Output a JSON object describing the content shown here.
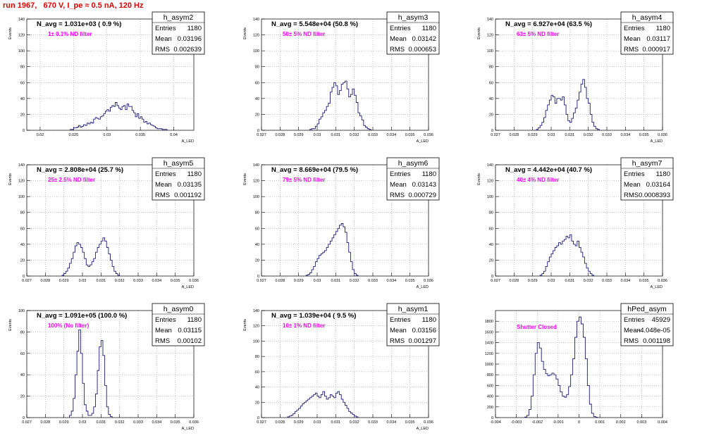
{
  "title": "run 1967,   670 V, I_pe ≈ 0.5 nA, 120 Hz",
  "chart_data": [
    {
      "type": "bar",
      "name": "h_asym2",
      "navg": "N_avg = 1.031e+03 ( 0.9 %)",
      "annotation": "1± 0.1% ND filter",
      "stats": {
        "Entries": "1180",
        "Mean": "0.03196",
        "RMS": "0.002639"
      },
      "ylabel": "Events",
      "xlabel": "A_LED",
      "xlim": [
        0.018,
        0.043
      ],
      "ylim": [
        0,
        140
      ],
      "xticks": [
        0.02,
        0.025,
        0.03,
        0.035,
        0.04
      ],
      "xticklabels": [
        "0.02",
        "0.025",
        "0.03",
        "0.035",
        "0.04"
      ],
      "yticks": [
        0,
        20,
        40,
        60,
        80,
        100,
        120,
        140
      ],
      "bins": {
        "start": 0.0245,
        "width": 0.00025,
        "counts": [
          1,
          1,
          3,
          3,
          4,
          6,
          4,
          5,
          7,
          6,
          9,
          8,
          10,
          9,
          14,
          16,
          15,
          14,
          17,
          18,
          21,
          24,
          26,
          24,
          29,
          31,
          30,
          35,
          31,
          28,
          26,
          30,
          31,
          26,
          33,
          30,
          30,
          25,
          22,
          17,
          21,
          15,
          17,
          14,
          10,
          11,
          8,
          9,
          7,
          6,
          5,
          3,
          2,
          2,
          2,
          1,
          1,
          1
        ]
      }
    },
    {
      "type": "bar",
      "name": "h_asym3",
      "navg": "N_avg = 5.548e+04 (50.8 %)",
      "annotation": "50± 5% ND filter",
      "stats": {
        "Entries": "1180",
        "Mean": "0.03142",
        "RMS": "0.000653"
      },
      "ylabel": "Events",
      "xlabel": "A_LED",
      "xlim": [
        0.027,
        0.036
      ],
      "ylim": [
        0,
        140
      ],
      "xticks": [
        0.027,
        0.028,
        0.029,
        0.03,
        0.031,
        0.032,
        0.033,
        0.034,
        0.035,
        0.036
      ],
      "xticklabels": [
        "0.027",
        "0.028",
        "0.029",
        "0.03",
        "0.031",
        "0.032",
        "0.033",
        "0.034",
        "0.035",
        "0.036"
      ],
      "yticks": [
        0,
        20,
        40,
        60,
        80,
        100,
        120,
        140
      ],
      "bins": {
        "start": 0.0296,
        "width": 0.0001,
        "counts": [
          1,
          2,
          2,
          5,
          8,
          14,
          17,
          22,
          25,
          30,
          34,
          48,
          54,
          60,
          56,
          45,
          50,
          58,
          60,
          62,
          52,
          42,
          45,
          52,
          44,
          35,
          22,
          18,
          13,
          6,
          4,
          2,
          1
        ]
      }
    },
    {
      "type": "bar",
      "name": "h_asym4",
      "navg": "N_avg = 6.927e+04 (63.5 %)",
      "annotation": "63± 5% ND filter",
      "stats": {
        "Entries": "1180",
        "Mean": "0.03117",
        "RMS": "0.000917"
      },
      "ylabel": "Events",
      "xlabel": "A_LED",
      "xlim": [
        0.027,
        0.036
      ],
      "ylim": [
        0,
        140
      ],
      "xticks": [
        0.027,
        0.028,
        0.029,
        0.03,
        0.031,
        0.032,
        0.033,
        0.034,
        0.035,
        0.036
      ],
      "xticklabels": [
        "0.027",
        "0.028",
        "0.029",
        "0.03",
        "0.031",
        "0.032",
        "0.033",
        "0.034",
        "0.035",
        "0.036"
      ],
      "yticks": [
        0,
        20,
        40,
        60,
        80,
        100,
        120,
        140
      ],
      "bins": {
        "start": 0.0292,
        "width": 0.0001,
        "counts": [
          1,
          3,
          6,
          10,
          16,
          25,
          32,
          38,
          44,
          42,
          34,
          40,
          40,
          38,
          42,
          32,
          20,
          12,
          10,
          15,
          22,
          28,
          38,
          48,
          58,
          64,
          54,
          40,
          34,
          20,
          10,
          5,
          2,
          1
        ]
      }
    },
    {
      "type": "bar",
      "name": "h_asym5",
      "navg": "N_avg = 2.808e+04 (25.7 %)",
      "annotation": "25± 2.5% ND filter",
      "stats": {
        "Entries": "1180",
        "Mean": "0.03135",
        "RMS": "0.001192"
      },
      "ylabel": "Events",
      "xlabel": "A_LED",
      "xlim": [
        0.027,
        0.036
      ],
      "ylim": [
        0,
        140
      ],
      "xticks": [
        0.027,
        0.028,
        0.029,
        0.03,
        0.031,
        0.032,
        0.033,
        0.034,
        0.035,
        0.036
      ],
      "xticklabels": [
        "0.027",
        "0.028",
        "0.029",
        "0.03",
        "0.031",
        "0.032",
        "0.033",
        "0.034",
        "0.035",
        "0.036"
      ],
      "yticks": [
        0,
        20,
        40,
        60,
        80,
        100,
        120,
        140
      ],
      "bins": {
        "start": 0.0289,
        "width": 0.0001,
        "counts": [
          1,
          3,
          6,
          10,
          16,
          22,
          30,
          38,
          42,
          40,
          36,
          30,
          22,
          14,
          12,
          14,
          18,
          22,
          30,
          36,
          40,
          44,
          48,
          44,
          36,
          28,
          20,
          12,
          6,
          3,
          1
        ]
      }
    },
    {
      "type": "bar",
      "name": "h_asym6",
      "navg": "N_avg = 8.669e+04 (79.5 %)",
      "annotation": "79± 5% ND filter",
      "stats": {
        "Entries": "1180",
        "Mean": "0.03143",
        "RMS": "0.000729"
      },
      "ylabel": "Events",
      "xlabel": "A_LED",
      "xlim": [
        0.027,
        0.036
      ],
      "ylim": [
        0,
        140
      ],
      "xticks": [
        0.027,
        0.028,
        0.029,
        0.03,
        0.031,
        0.032,
        0.033,
        0.034,
        0.035,
        0.036
      ],
      "xticklabels": [
        "0.027",
        "0.028",
        "0.029",
        "0.03",
        "0.031",
        "0.032",
        "0.033",
        "0.034",
        "0.035",
        "0.036"
      ],
      "yticks": [
        0,
        20,
        40,
        60,
        80,
        100,
        120,
        140
      ],
      "bins": {
        "start": 0.0294,
        "width": 0.0001,
        "counts": [
          1,
          2,
          4,
          8,
          12,
          18,
          22,
          26,
          28,
          30,
          32,
          36,
          40,
          44,
          48,
          52,
          56,
          60,
          64,
          66,
          62,
          55,
          42,
          30,
          18,
          8,
          3,
          1
        ]
      }
    },
    {
      "type": "bar",
      "name": "h_asym7",
      "navg": "N_avg = 4.442e+04 (40.7 %)",
      "annotation": "40± 4% ND filter",
      "stats": {
        "Entries": "1180",
        "Mean": "0.03164",
        "RMS": "0.0008393"
      },
      "ylabel": "Events",
      "xlabel": "A_LED",
      "xlim": [
        0.027,
        0.036
      ],
      "ylim": [
        0,
        140
      ],
      "xticks": [
        0.027,
        0.028,
        0.029,
        0.03,
        0.031,
        0.032,
        0.033,
        0.034,
        0.035,
        0.036
      ],
      "xticklabels": [
        "0.027",
        "0.028",
        "0.029",
        "0.03",
        "0.031",
        "0.032",
        "0.033",
        "0.034",
        "0.035",
        "0.036"
      ],
      "yticks": [
        0,
        20,
        40,
        60,
        80,
        100,
        120,
        140
      ],
      "bins": {
        "start": 0.0294,
        "width": 0.0001,
        "counts": [
          1,
          3,
          6,
          12,
          18,
          24,
          28,
          32,
          36,
          38,
          42,
          40,
          44,
          46,
          50,
          48,
          52,
          44,
          40,
          38,
          44,
          36,
          30,
          24,
          16,
          10,
          6,
          3,
          1
        ]
      }
    },
    {
      "type": "bar",
      "name": "h_asym0",
      "navg": "N_avg = 1.091e+05 (100.0 %)",
      "annotation": "100% (No filter)",
      "stats": {
        "Entries": "1180",
        "Mean": "0.03115",
        "RMS": "0.00102"
      },
      "ylabel": "Events",
      "xlabel": "A_LED",
      "xlim": [
        0.027,
        0.036
      ],
      "ylim": [
        0,
        100
      ],
      "xticks": [
        0.027,
        0.028,
        0.029,
        0.03,
        0.031,
        0.032,
        0.033,
        0.034,
        0.035,
        0.036
      ],
      "xticklabels": [
        "0.027",
        "0.028",
        "0.029",
        "0.03",
        "0.031",
        "0.032",
        "0.033",
        "0.034",
        "0.035",
        "0.036"
      ],
      "yticks": [
        0,
        20,
        40,
        60,
        80,
        100
      ],
      "bins": {
        "start": 0.0293,
        "width": 0.0001,
        "counts": [
          2,
          6,
          18,
          40,
          62,
          82,
          60,
          32,
          12,
          6,
          2,
          2,
          4,
          10,
          22,
          44,
          66,
          72,
          58,
          30,
          10,
          3,
          1
        ]
      }
    },
    {
      "type": "bar",
      "name": "h_asym1",
      "navg": "N_avg = 1.039e+04 ( 9.5 %)",
      "annotation": "10± 1% ND filter",
      "stats": {
        "Entries": "1180",
        "Mean": "0.03156",
        "RMS": "0.001297"
      },
      "ylabel": "Events",
      "xlabel": "A_LED",
      "xlim": [
        0.027,
        0.036
      ],
      "ylim": [
        0,
        140
      ],
      "xticks": [
        0.027,
        0.028,
        0.029,
        0.03,
        0.031,
        0.032,
        0.033,
        0.034,
        0.035,
        0.036
      ],
      "xticklabels": [
        "0.027",
        "0.028",
        "0.029",
        "0.03",
        "0.031",
        "0.032",
        "0.033",
        "0.034",
        "0.035",
        "0.036"
      ],
      "yticks": [
        0,
        20,
        40,
        60,
        80,
        100,
        120,
        140
      ],
      "bins": {
        "start": 0.0284,
        "width": 0.0001,
        "counts": [
          1,
          2,
          3,
          5,
          8,
          10,
          12,
          15,
          18,
          20,
          22,
          24,
          26,
          28,
          30,
          32,
          28,
          26,
          30,
          34,
          28,
          24,
          26,
          30,
          28,
          26,
          32,
          34,
          30,
          24,
          20,
          16,
          12,
          8,
          6,
          4,
          2,
          1
        ]
      }
    },
    {
      "type": "bar",
      "name": "hPed_asym",
      "navg": "",
      "annotation": "Shutter Closed",
      "stats": {
        "Entries": "45929",
        "Mean": "-4.048e-05",
        "RMS": "0.001198"
      },
      "ylabel": "",
      "xlabel": "",
      "xlim": [
        -0.004,
        0.004
      ],
      "ylim": [
        0,
        2000
      ],
      "xticks": [
        -0.004,
        -0.003,
        -0.002,
        -0.001,
        0,
        0.001,
        0.002,
        0.003,
        0.004
      ],
      "xticklabels": [
        "-0.004",
        "-0.003",
        "-0.002",
        "-0.001",
        "0",
        "0.001",
        "0.002",
        "0.003",
        "0.004"
      ],
      "yticks": [
        0,
        200,
        400,
        600,
        800,
        1000,
        1200,
        1400,
        1600,
        1800
      ],
      "bins": {
        "start": -0.0026,
        "width": 0.0001,
        "counts": [
          10,
          40,
          150,
          400,
          800,
          1200,
          1400,
          1300,
          1050,
          900,
          820,
          780,
          800,
          830,
          800,
          720,
          600,
          480,
          400,
          380,
          430,
          580,
          800,
          1100,
          1500,
          1800,
          1880,
          1750,
          1500,
          1100,
          600,
          250,
          80,
          20,
          5
        ]
      }
    }
  ]
}
